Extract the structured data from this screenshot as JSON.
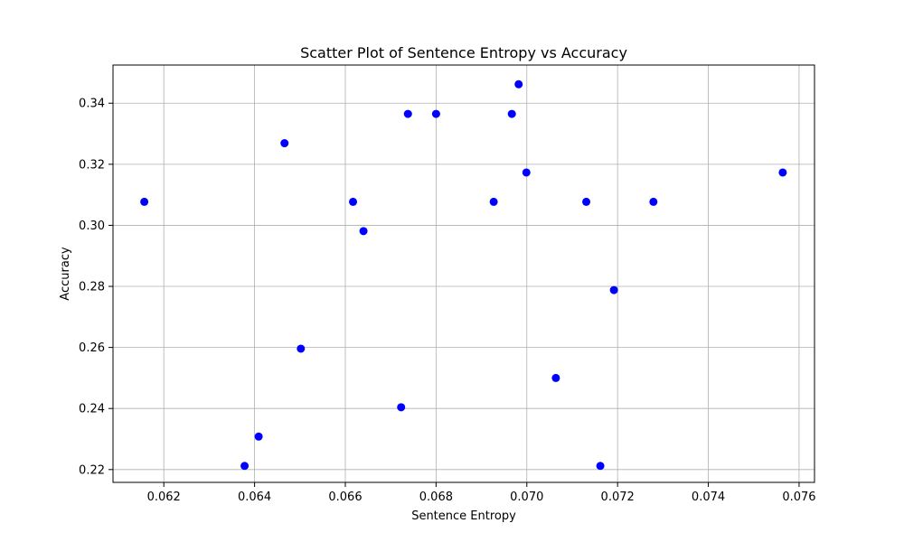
{
  "chart_data": {
    "type": "scatter",
    "title": "Scatter Plot of Sentence Entropy vs Accuracy",
    "xlabel": "Sentence Entropy",
    "ylabel": "Accuracy",
    "xlim": [
      0.06088,
      0.07634
    ],
    "ylim": [
      0.2158,
      0.3525
    ],
    "xticks": [
      0.062,
      0.064,
      0.066,
      0.068,
      0.07,
      0.072,
      0.074,
      0.076
    ],
    "yticks": [
      0.22,
      0.24,
      0.26,
      0.28,
      0.3,
      0.32,
      0.34
    ],
    "xtick_labels": [
      "0.062",
      "0.064",
      "0.066",
      "0.068",
      "0.070",
      "0.072",
      "0.074",
      "0.076"
    ],
    "ytick_labels": [
      "0.22",
      "0.24",
      "0.26",
      "0.28",
      "0.30",
      "0.32",
      "0.34"
    ],
    "grid": true,
    "marker_color": "#0000ff",
    "points": [
      {
        "x": 0.06157,
        "y": 0.3077
      },
      {
        "x": 0.06378,
        "y": 0.2212
      },
      {
        "x": 0.06409,
        "y": 0.2308
      },
      {
        "x": 0.06466,
        "y": 0.3269
      },
      {
        "x": 0.06502,
        "y": 0.2596
      },
      {
        "x": 0.06617,
        "y": 0.3077
      },
      {
        "x": 0.0664,
        "y": 0.2981
      },
      {
        "x": 0.06723,
        "y": 0.2404
      },
      {
        "x": 0.06738,
        "y": 0.3365
      },
      {
        "x": 0.068,
        "y": 0.3365
      },
      {
        "x": 0.06927,
        "y": 0.3077
      },
      {
        "x": 0.06967,
        "y": 0.3365
      },
      {
        "x": 0.06982,
        "y": 0.3462
      },
      {
        "x": 0.06999,
        "y": 0.3173
      },
      {
        "x": 0.07064,
        "y": 0.25
      },
      {
        "x": 0.07131,
        "y": 0.3077
      },
      {
        "x": 0.07162,
        "y": 0.2212
      },
      {
        "x": 0.07192,
        "y": 0.2788
      },
      {
        "x": 0.07279,
        "y": 0.3077
      },
      {
        "x": 0.07564,
        "y": 0.3173
      }
    ]
  }
}
